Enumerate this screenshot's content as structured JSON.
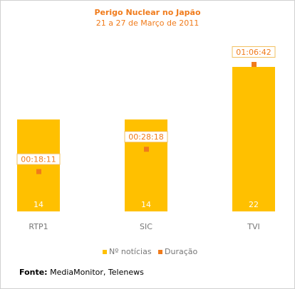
{
  "chart_data": {
    "type": "bar",
    "title": "Perigo Nuclear no Japão",
    "subtitle": "21 a 27 de Março de 2011",
    "categories": [
      "RTP1",
      "SIC",
      "TVI"
    ],
    "series": [
      {
        "name": "Nº notícias",
        "values": [
          14,
          14,
          22
        ],
        "color": "#ffc000",
        "label_color": "#ffffff"
      },
      {
        "name": "Duração",
        "values": [
          "00:18:11",
          "00:28:18",
          "01:06:42"
        ],
        "color": "#f07b1b",
        "label_color": "#f07b1b"
      }
    ],
    "legend_position": "bottom",
    "grid": false
  },
  "source": {
    "label": "Fonte:",
    "text": "MediaMonitor, Telenews"
  }
}
